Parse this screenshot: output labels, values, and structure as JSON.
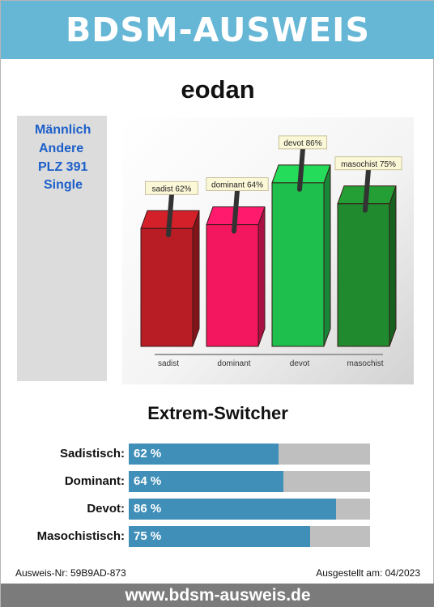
{
  "header": {
    "title": "BDSM-AUSWEIS"
  },
  "profile": {
    "username": "eodan",
    "info": [
      "Männlich",
      "Andere",
      "PLZ 391",
      "Single"
    ]
  },
  "chart_data": {
    "type": "bar",
    "categories": [
      "sadist",
      "dominant",
      "devot",
      "masochist"
    ],
    "values": [
      62,
      64,
      86,
      75
    ],
    "labels": [
      "sadist 62%",
      "dominant 64%",
      "devot 86%",
      "masochist 75%"
    ],
    "colors": [
      "#b81c24",
      "#f2175f",
      "#1fbf4e",
      "#1f8a2e"
    ],
    "ylim": [
      0,
      100
    ]
  },
  "result": {
    "type": "Extrem-Switcher",
    "bars": [
      {
        "label": "Sadistisch:",
        "value": 62,
        "display": "62 %"
      },
      {
        "label": "Dominant:",
        "value": 64,
        "display": "64 %"
      },
      {
        "label": "Devot:",
        "value": 86,
        "display": "86 %"
      },
      {
        "label": "Masochistisch:",
        "value": 75,
        "display": "75 %"
      }
    ]
  },
  "meta": {
    "id": "Ausweis-Nr: 59B9AD-873",
    "issued": "Ausgestellt am: 04/2023"
  },
  "footer": {
    "url": "www.bdsm-ausweis.de"
  },
  "colors": {
    "header": "#66b6d6",
    "bar_fill": "#3f8fb9",
    "bar_track": "#bfbfbf",
    "footer": "#7b7b7b",
    "info_text": "#1c5fc9"
  }
}
